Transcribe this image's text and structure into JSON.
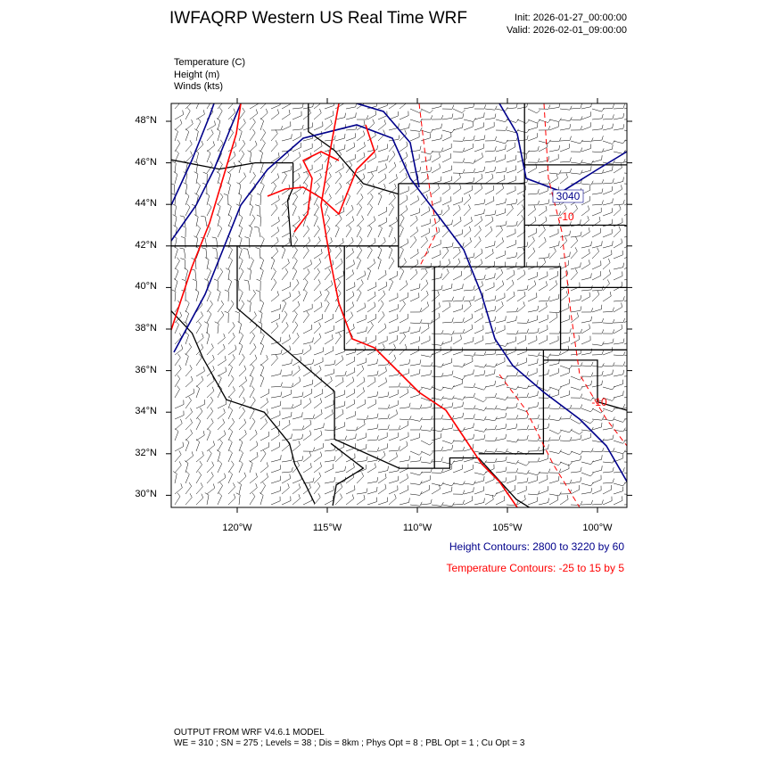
{
  "header": {
    "title": "IWFAQRP Western US Real Time WRF",
    "init": "Init: 2026-01-27_00:00:00",
    "valid": "Valid: 2026-02-01_09:00:00"
  },
  "fields": [
    "Temperature   (C)",
    "Height   (m)",
    "Winds   (kts)"
  ],
  "axes": {
    "lat_labels": [
      "48°N",
      "46°N",
      "44°N",
      "42°N",
      "40°N",
      "38°N",
      "36°N",
      "34°N",
      "32°N",
      "30°N"
    ],
    "lat_values": [
      48,
      46,
      44,
      42,
      40,
      38,
      36,
      34,
      32,
      30
    ],
    "lon_labels": [
      "120°W",
      "115°W",
      "110°W",
      "105°W",
      "100°W"
    ],
    "lon_values": [
      -120,
      -115,
      -110,
      -105,
      -100
    ]
  },
  "contour_labels": {
    "height": "3040",
    "temp_1": "-10",
    "temp_2": "-10"
  },
  "legend": {
    "height": "Height Contours: 2800 to 3220 by 60",
    "temperature": "Temperature Contours: -25 to 15 by 5"
  },
  "colors": {
    "height": "#00008b",
    "temperature": "#ff0000"
  },
  "footer": {
    "line1": "OUTPUT FROM WRF V4.6.1 MODEL",
    "line2": "WE = 310 ; SN = 275 ; Levels = 38 ; Dis = 8km ; Phys Opt = 8 ; PBL Opt = 1 ; Cu Opt = 3"
  }
}
